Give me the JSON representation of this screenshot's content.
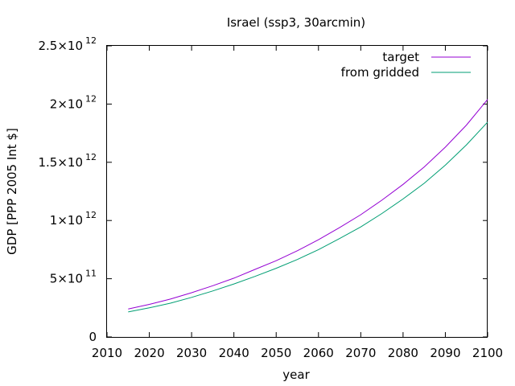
{
  "chart_data": {
    "type": "line",
    "title": "Israel (ssp3, 30arcmin)",
    "xlabel": "year",
    "ylabel": "GDP [PPP 2005 Int $]",
    "xlim": [
      2010,
      2100
    ],
    "ylim": [
      0,
      2500000000000
    ],
    "xticks": [
      2010,
      2020,
      2030,
      2040,
      2050,
      2060,
      2070,
      2080,
      2090,
      2100
    ],
    "yticks": [
      {
        "value": 0,
        "mantissa": "0",
        "exponent": ""
      },
      {
        "value": 500000000000,
        "mantissa": "5×10",
        "exponent": "11"
      },
      {
        "value": 1000000000000,
        "mantissa": "1×10",
        "exponent": "12"
      },
      {
        "value": 1500000000000,
        "mantissa": "1.5×10",
        "exponent": "12"
      },
      {
        "value": 2000000000000,
        "mantissa": "2×10",
        "exponent": "12"
      },
      {
        "value": 2500000000000,
        "mantissa": "2.5×10",
        "exponent": "12"
      }
    ],
    "grid": false,
    "legend_position": "top-right",
    "x": [
      2015,
      2020,
      2025,
      2030,
      2035,
      2040,
      2045,
      2050,
      2055,
      2060,
      2065,
      2070,
      2075,
      2080,
      2085,
      2090,
      2095,
      2100
    ],
    "series": [
      {
        "name": "target",
        "color": "#9400d3",
        "values": [
          240000000000,
          280000000000,
          325000000000,
          380000000000,
          440000000000,
          505000000000,
          580000000000,
          655000000000,
          740000000000,
          835000000000,
          940000000000,
          1050000000000,
          1175000000000,
          1310000000000,
          1460000000000,
          1630000000000,
          1820000000000,
          2040000000000
        ]
      },
      {
        "name": "from gridded",
        "color": "#009e73",
        "values": [
          215000000000,
          250000000000,
          290000000000,
          340000000000,
          395000000000,
          455000000000,
          520000000000,
          590000000000,
          665000000000,
          750000000000,
          845000000000,
          945000000000,
          1060000000000,
          1185000000000,
          1320000000000,
          1475000000000,
          1650000000000,
          1845000000000
        ]
      }
    ]
  }
}
